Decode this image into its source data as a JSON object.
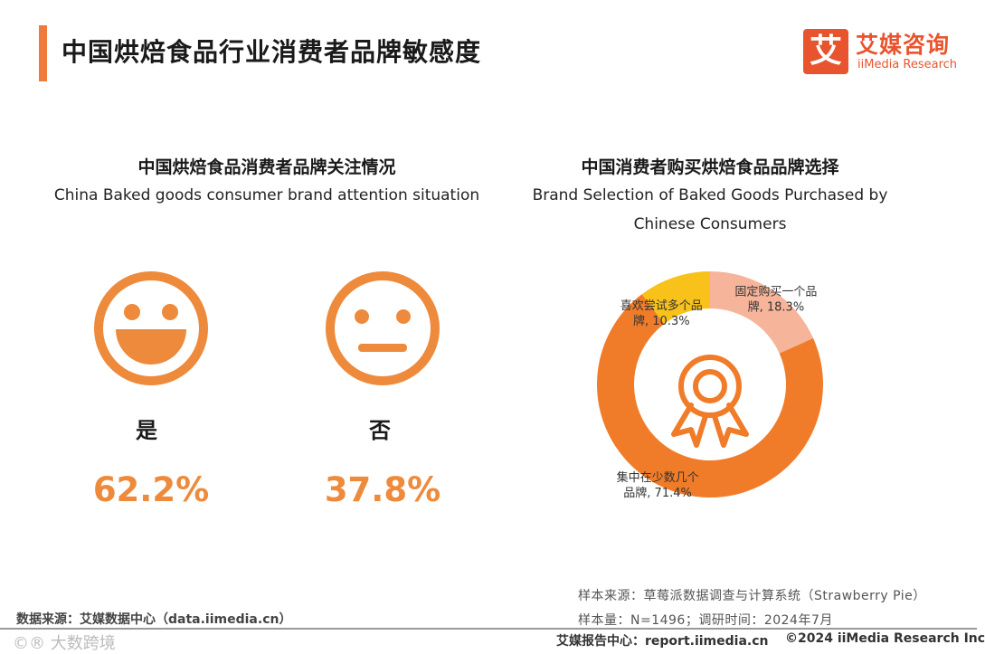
{
  "page": {
    "title": "中国烘焙食品行业消费者品牌敏感度",
    "accent_color": "#ee7a3c"
  },
  "logo": {
    "mark": "艾",
    "cn": "艾媒咨询",
    "en": "iiMedia Research",
    "color": "#e8542e"
  },
  "chart_data": [
    {
      "type": "icon-stat",
      "title": "中国烘焙食品消费者品牌关注情况",
      "subtitle": "China Baked goods consumer brand attention situation",
      "items": [
        {
          "label": "是",
          "value": 62.2,
          "display": "62.2%",
          "icon": "laughing-face-icon"
        },
        {
          "label": "否",
          "value": 37.8,
          "display": "37.8%",
          "icon": "neutral-face-icon"
        }
      ]
    },
    {
      "type": "pie",
      "donut": true,
      "title": "中国消费者购买烘焙食品品牌选择",
      "subtitle_lines": [
        "Brand Selection of Baked Goods Purchased by",
        "Chinese Consumers"
      ],
      "center_icon": "award-badge-icon",
      "slices": [
        {
          "label": "固定购买一个品牌",
          "value": 18.3,
          "display_lines": [
            "固定购买一个品",
            "牌, 18.3%"
          ],
          "color": "#f6b49a"
        },
        {
          "label": "集中在少数几个品牌",
          "value": 71.4,
          "display_lines": [
            "集中在少数几个",
            "品牌, 71.4%"
          ],
          "color": "#f07c29"
        },
        {
          "label": "喜欢尝试多个品牌",
          "value": 10.3,
          "display_lines": [
            "喜欢尝试多个品",
            "牌, 10.3%"
          ],
          "color": "#f8c21a"
        }
      ]
    }
  ],
  "notes": {
    "sample_source": "样本来源：草莓派数据调查与计算系统（Strawberry Pie）",
    "sample_size": "样本量：N=1496；调研时间：2024年7月",
    "data_source": "数据来源：艾媒数据中心（data.iimedia.cn）"
  },
  "footer": {
    "watermark": "©® 大数跨境",
    "report_center": "艾媒报告中心：report.iimedia.cn",
    "copyright": "©2024 iiMedia Research Inc"
  }
}
